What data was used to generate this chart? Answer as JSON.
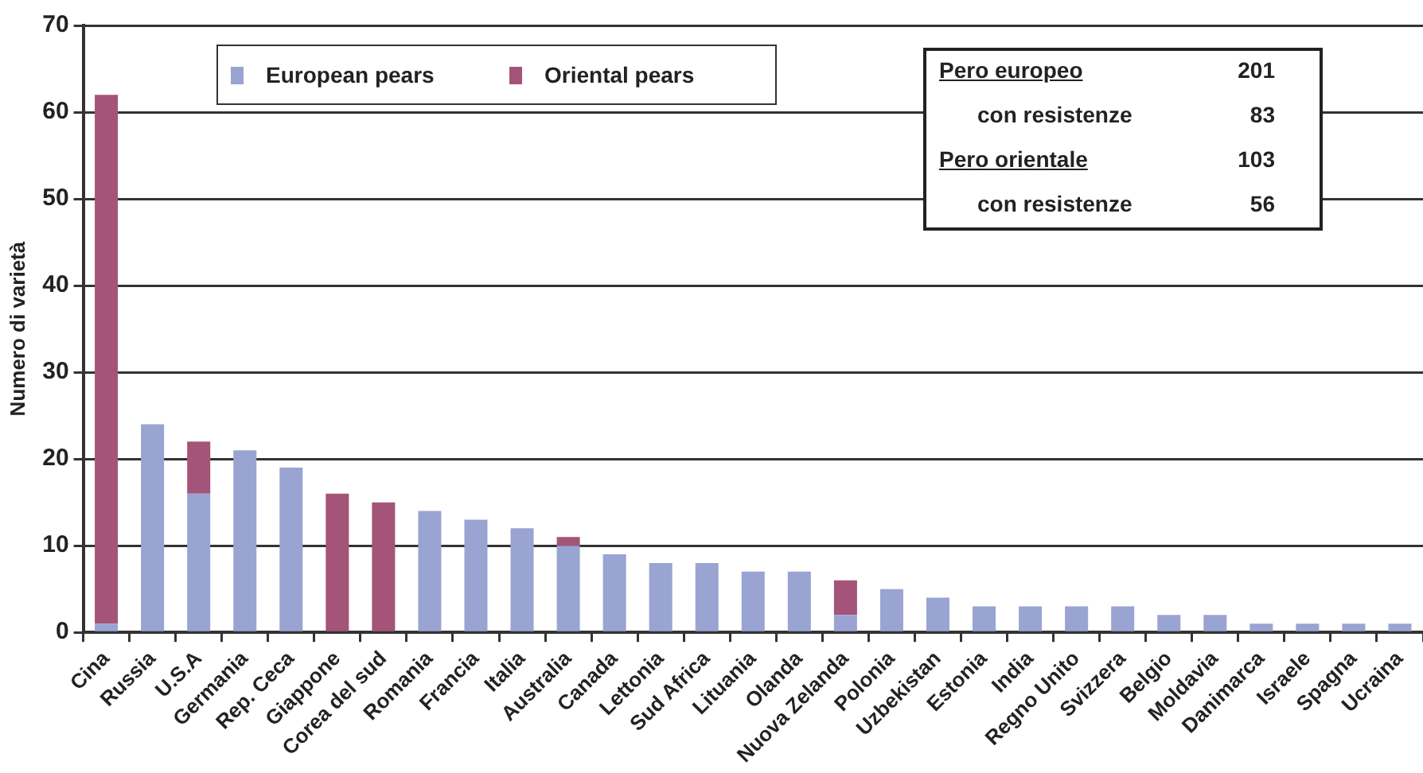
{
  "chart_data": {
    "type": "bar",
    "stacked": true,
    "ylabel": "Numero di varietà",
    "categories": [
      "Cina",
      "Russia",
      "U.S.A",
      "Germania",
      "Rep. Ceca",
      "Giappone",
      "Corea del sud",
      "Romania",
      "Francia",
      "Italia",
      "Australia",
      "Canada",
      "Lettonia",
      "Sud Africa",
      "Lituania",
      "Olanda",
      "Nuova Zelanda",
      "Polonia",
      "Uzbekistan",
      "Estonia",
      "India",
      "Regno Unito",
      "Svizzera",
      "Belgio",
      "Moldavia",
      "Danimarca",
      "Israele",
      "Spagna",
      "Ucraina"
    ],
    "series": [
      {
        "name": "European pears",
        "color": "#99a4d2",
        "values": [
          1,
          24,
          16,
          21,
          19,
          0,
          0,
          14,
          13,
          12,
          10,
          9,
          8,
          8,
          7,
          7,
          2,
          5,
          4,
          3,
          3,
          3,
          3,
          2,
          2,
          1,
          1,
          1,
          1
        ]
      },
      {
        "name": "Oriental pears",
        "color": "#a45478",
        "values": [
          61,
          0,
          6,
          0,
          0,
          16,
          15,
          0,
          0,
          0,
          1,
          0,
          0,
          0,
          0,
          0,
          4,
          0,
          0,
          0,
          0,
          0,
          0,
          0,
          0,
          0,
          0,
          0,
          0
        ]
      }
    ],
    "ylim": [
      0,
      70
    ],
    "yticks": [
      0,
      10,
      20,
      30,
      40,
      50,
      60,
      70
    ],
    "grid": "y",
    "legend": "top left",
    "annotations": [
      "Pero europeo",
      "201",
      "con resistenze",
      "83",
      "Pero orientale",
      "103",
      "con resistenze",
      "56"
    ]
  }
}
